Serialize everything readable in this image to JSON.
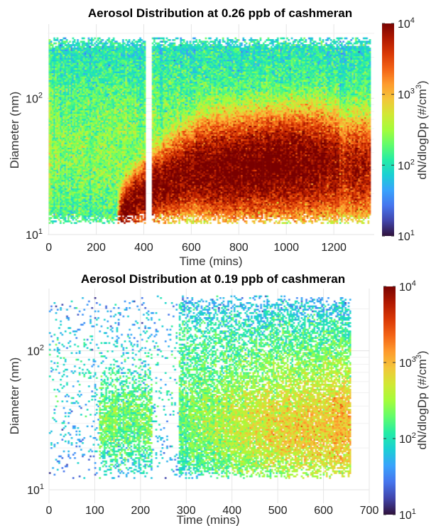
{
  "colormap": [
    "#30123b",
    "#4145ab",
    "#4675ed",
    "#39a2fc",
    "#1bcfd4",
    "#24eca6",
    "#61fc6c",
    "#a4fc3b",
    "#d1e834",
    "#f3c63a",
    "#fe9b2d",
    "#f36315",
    "#d93806",
    "#b11901",
    "#7a0402"
  ],
  "chart_data": [
    {
      "type": "heatmap",
      "title": "Aerosol Distribution at 0.26 ppb of cashmeran",
      "xlabel": "Time (mins)",
      "ylabel": "Diameter (nm)",
      "xlim": [
        -5,
        1370
      ],
      "ylim": [
        10,
        350
      ],
      "yscale": "log",
      "xticks": [
        "0",
        "200",
        "400",
        "600",
        "800",
        "1000",
        "1200"
      ],
      "xtick_values": [
        0,
        200,
        400,
        600,
        800,
        1000,
        1200
      ],
      "yticks": [
        {
          "base": "10",
          "exp": "1",
          "value": 10
        },
        {
          "base": "10",
          "exp": "2",
          "value": 100
        }
      ],
      "data_x_range": [
        0,
        1355
      ],
      "data_diameter_range": [
        12,
        280
      ],
      "gap_x": [
        405,
        435
      ],
      "colorbar": {
        "label": "dN/dlogDp (#/cm",
        "label_sup": "3",
        "label_end": ")",
        "range": [
          10,
          10000
        ],
        "scale": "log",
        "ticks": [
          {
            "base": "10",
            "exp": "1",
            "value": 10
          },
          {
            "base": "10",
            "exp": "2",
            "value": 100
          },
          {
            "base": "10",
            "exp": "3",
            "value": 1000
          },
          {
            "base": "10",
            "exp": "4",
            "value": 10000
          }
        ]
      },
      "features": [
        {
          "type": "background",
          "level": 200
        },
        {
          "type": "nucleation_band",
          "x_start": 290,
          "x_end": 1355,
          "diameter_start": 11,
          "peak_diameter": 30,
          "peak_level": 11000
        },
        {
          "type": "growth_tail",
          "x_start": 700,
          "x_end": 1355,
          "peak_level": 4000
        }
      ]
    },
    {
      "type": "heatmap",
      "title": "Aerosol Distribution at 0.19 ppb of cashmeran",
      "xlabel": "Time (mins)",
      "ylabel": "Diameter (nm)",
      "xlim": [
        0,
        700
      ],
      "ylim": [
        8,
        280
      ],
      "yscale": "log",
      "xticks": [
        "0",
        "100",
        "200",
        "300",
        "400",
        "500",
        "600",
        "700"
      ],
      "xtick_values": [
        0,
        100,
        200,
        300,
        400,
        500,
        600,
        700
      ],
      "yticks": [
        {
          "base": "10",
          "exp": "1",
          "value": 10
        },
        {
          "base": "10",
          "exp": "2",
          "value": 100
        }
      ],
      "data_x_range": [
        0,
        660
      ],
      "data_diameter_range": [
        12,
        250
      ],
      "colorbar": {
        "label": "dN/dlogDp (#/cm",
        "label_sup": "3",
        "label_end": ")",
        "range": [
          10,
          10000
        ],
        "scale": "log",
        "ticks": [
          {
            "base": "10",
            "exp": "1",
            "value": 10
          },
          {
            "base": "10",
            "exp": "2",
            "value": 100
          },
          {
            "base": "10",
            "exp": "3",
            "value": 1000
          },
          {
            "base": "10",
            "exp": "4",
            "value": 10000
          }
        ]
      },
      "features": [
        {
          "type": "sparse_background",
          "level": 60
        },
        {
          "type": "cluster",
          "x_start": 110,
          "x_end": 225,
          "peak_diameter": 30,
          "peak_level": 150
        },
        {
          "type": "dense_region",
          "x_start": 285,
          "x_end": 660,
          "peak_diameter": 28,
          "peak_level": 900
        }
      ]
    }
  ]
}
